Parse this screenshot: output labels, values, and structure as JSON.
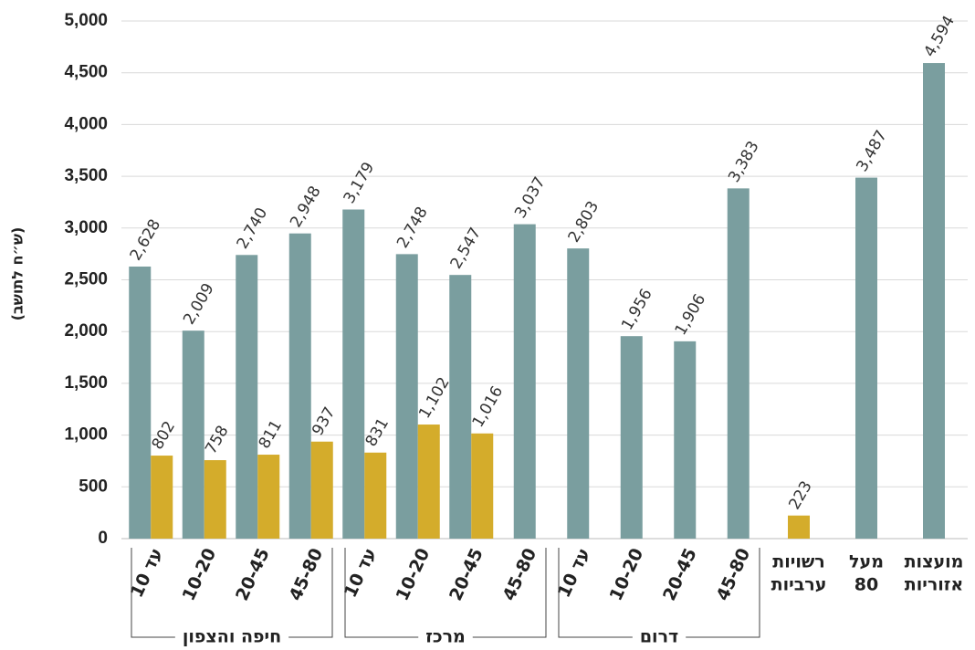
{
  "chart_data": {
    "type": "bar",
    "y_axis_label": "(ש״ח לתושב)",
    "categories": [
      "עד 10",
      "10-20",
      "20-45",
      "45-80",
      "עד 10",
      "10-20",
      "20-45",
      "45-80",
      "עד 10",
      "10-20",
      "20-45",
      "45-80",
      [
        "רשויות",
        "ערביות"
      ],
      [
        "מעל",
        "80"
      ],
      [
        "מועצות",
        "אזוריות"
      ]
    ],
    "groups": [
      {
        "label": "חיפה והצפון",
        "span": 4
      },
      {
        "label": "מרכז",
        "span": 4
      },
      {
        "label": "דרום",
        "span": 4
      }
    ],
    "series": [
      {
        "color": "#7a9e9f",
        "values": [
          2628,
          2009,
          2740,
          2948,
          3179,
          2748,
          2547,
          3037,
          2803,
          1956,
          1906,
          3383,
          null,
          3487,
          4594
        ],
        "value_labels": [
          "2,628",
          "2,009",
          "2,740",
          "2,948",
          "3,179",
          "2,748",
          "2,547",
          "3,037",
          "2,803",
          "1,956",
          "1,906",
          "3,383",
          null,
          "3,487",
          "4,594"
        ]
      },
      {
        "color": "#d4ac2b",
        "values": [
          802,
          758,
          811,
          937,
          831,
          1102,
          1016,
          null,
          null,
          null,
          null,
          null,
          223,
          null,
          null
        ],
        "value_labels": [
          "802",
          "758",
          "811",
          "937",
          "831",
          "1,102",
          "1,016",
          null,
          null,
          null,
          null,
          null,
          "223",
          null,
          null
        ]
      }
    ],
    "ylim": [
      0,
      5000
    ],
    "yticks": [
      0,
      500,
      {
        "value": 1000,
        "label": "1,000"
      },
      {
        "value": 1500,
        "label": "1,500"
      },
      {
        "value": 2000,
        "label": "2,000"
      },
      {
        "value": 2500,
        "label": "2,500"
      },
      {
        "value": 3000,
        "label": "3,000"
      },
      {
        "value": 3500,
        "label": "3,500"
      },
      {
        "value": 4000,
        "label": "4,000"
      },
      {
        "value": 4500,
        "label": "4,500"
      },
      {
        "value": 5000,
        "label": "5,000"
      }
    ],
    "grid": true
  }
}
